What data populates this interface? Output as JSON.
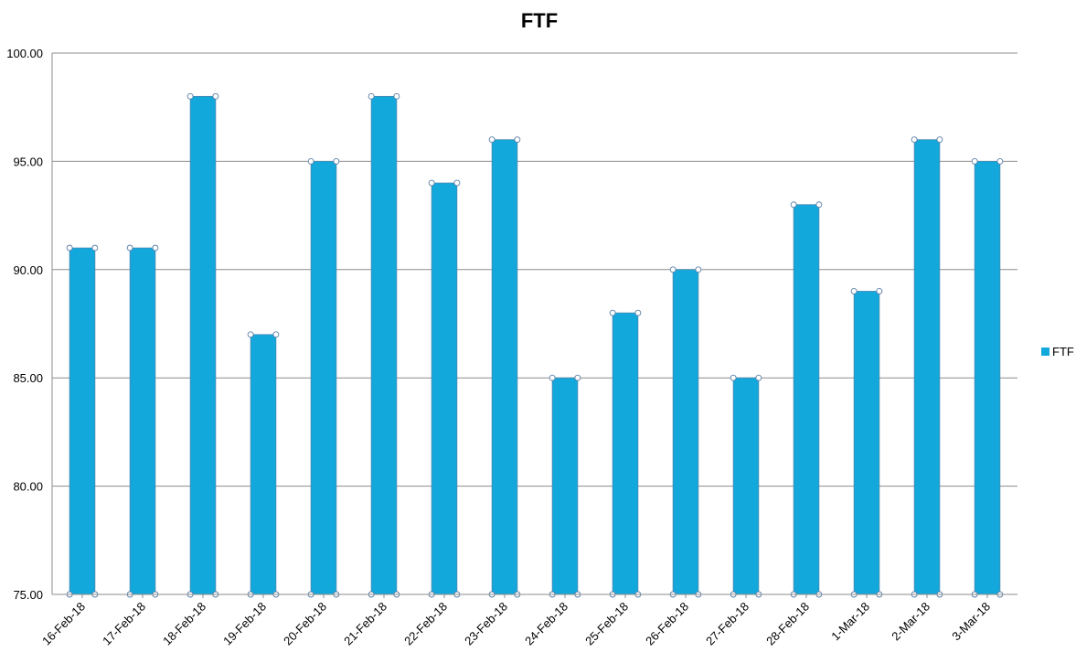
{
  "chart_data": {
    "type": "bar",
    "title": "FTF",
    "categories": [
      "16-Feb-18",
      "17-Feb-18",
      "18-Feb-18",
      "19-Feb-18",
      "20-Feb-18",
      "21-Feb-18",
      "22-Feb-18",
      "23-Feb-18",
      "24-Feb-18",
      "25-Feb-18",
      "26-Feb-18",
      "27-Feb-18",
      "28-Feb-18",
      "1-Mar-18",
      "2-Mar-18",
      "3-Mar-18"
    ],
    "series": [
      {
        "name": "FTF",
        "values": [
          91,
          91,
          98,
          87,
          95,
          98,
          94,
          96,
          85,
          88,
          90,
          85,
          93,
          89,
          96,
          95
        ],
        "color": "#13a8dc"
      }
    ],
    "xlabel": "",
    "ylabel": "",
    "ylim": [
      75,
      100
    ],
    "yticks": [
      "75.00",
      "80.00",
      "85.00",
      "90.00",
      "95.00",
      "100.00"
    ],
    "grid": true,
    "legend_position": "right",
    "colors": {
      "bar": "#13a8dc",
      "bar_border": "#4a88b0",
      "gridline": "#8c8c8c",
      "axis": "#8c8c8c"
    }
  }
}
